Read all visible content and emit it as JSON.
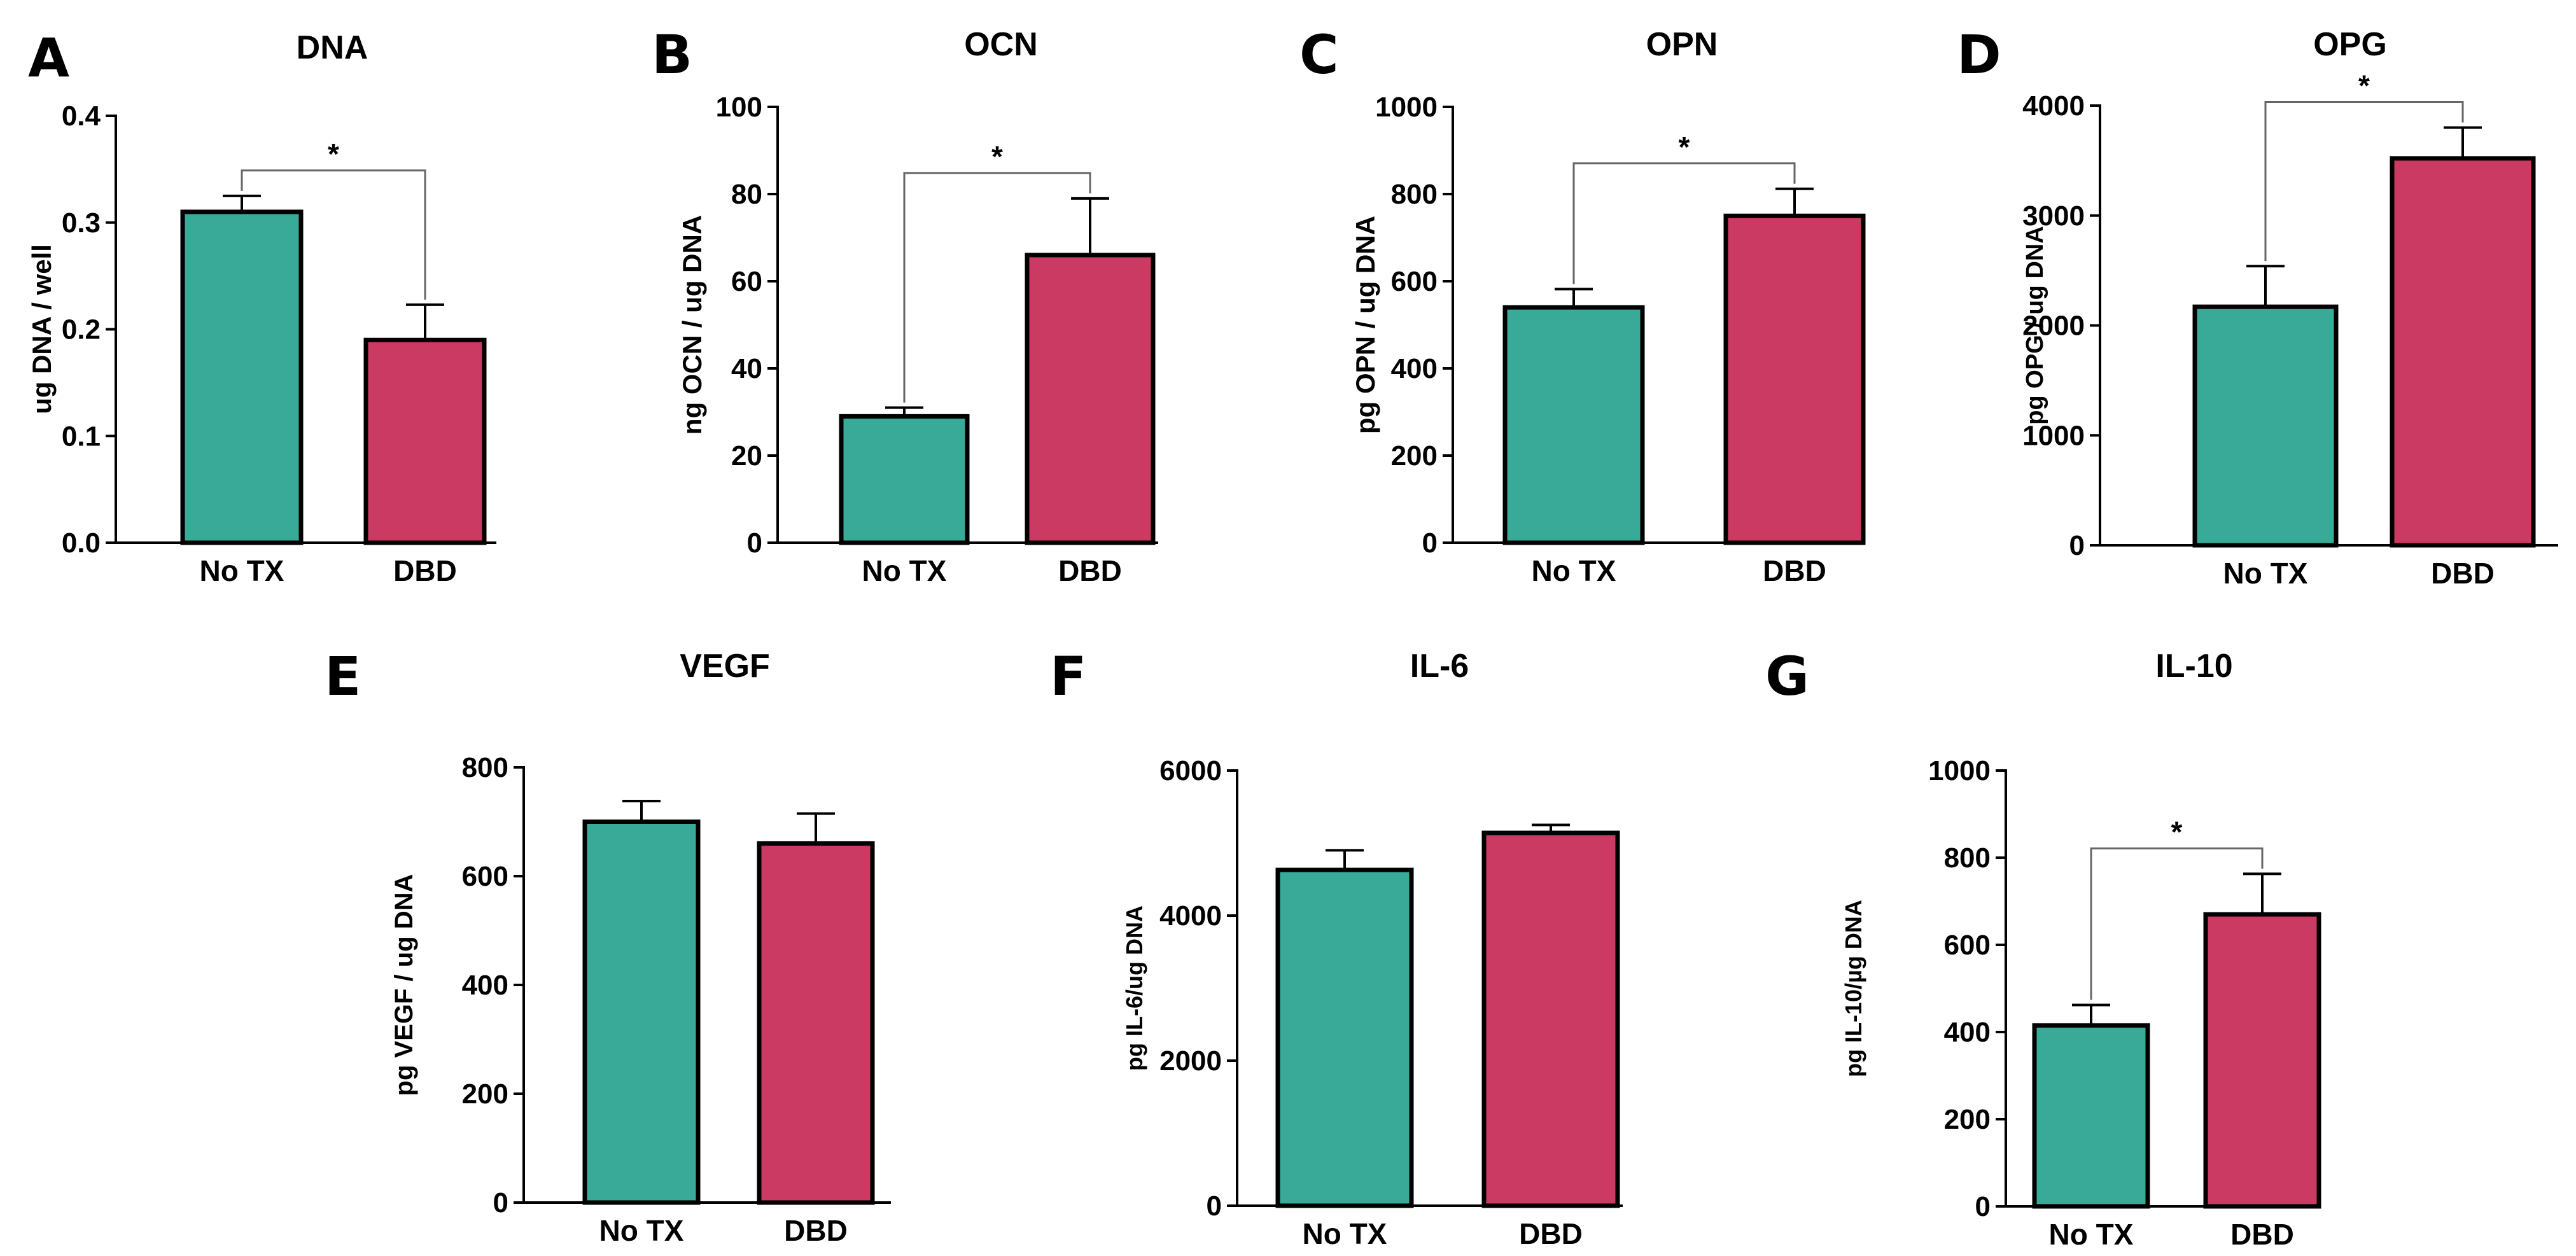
{
  "colors": {
    "no_tx": "#3aaa98",
    "dbd": "#cb3a62"
  },
  "chart_data": [
    {
      "type": "bar",
      "panel": "A",
      "title": "DNA",
      "xlabel": "",
      "ylabel": "ug DNA / well",
      "categories": [
        "No TX",
        "DBD"
      ],
      "values": [
        0.31,
        0.19
      ],
      "errors": [
        0.015,
        0.033
      ],
      "ylim": [
        0,
        0.4
      ],
      "yticks": [
        "0.0",
        "0.1",
        "0.2",
        "0.3",
        "0.4"
      ],
      "significance": "*"
    },
    {
      "type": "bar",
      "panel": "B",
      "title": "OCN",
      "xlabel": "",
      "ylabel": "ng OCN / ug DNA",
      "categories": [
        "No TX",
        "DBD"
      ],
      "values": [
        29,
        66
      ],
      "errors": [
        2,
        13
      ],
      "ylim": [
        0,
        100
      ],
      "yticks": [
        "0",
        "20",
        "40",
        "60",
        "80",
        "100"
      ],
      "significance": "*"
    },
    {
      "type": "bar",
      "panel": "C",
      "title": "OPN",
      "xlabel": "",
      "ylabel": "pg OPN / ug DNA",
      "categories": [
        "No TX",
        "DBD"
      ],
      "values": [
        540,
        750
      ],
      "errors": [
        42,
        62
      ],
      "ylim": [
        0,
        1000
      ],
      "yticks": [
        "0",
        "200",
        "400",
        "600",
        "800",
        "1000"
      ],
      "significance": "*"
    },
    {
      "type": "bar",
      "panel": "D",
      "title": "OPG",
      "xlabel": "",
      "ylabel": "pg OPG / ug DNA",
      "categories": [
        "No TX",
        "DBD"
      ],
      "values": [
        2170,
        3520
      ],
      "errors": [
        370,
        280
      ],
      "ylim": [
        0,
        4000
      ],
      "yticks": [
        "0",
        "1000",
        "2000",
        "3000",
        "4000"
      ],
      "significance": "*"
    },
    {
      "type": "bar",
      "panel": "E",
      "title": "VEGF",
      "xlabel": "",
      "ylabel": "pg VEGF / ug DNA",
      "categories": [
        "No TX",
        "DBD"
      ],
      "values": [
        700,
        660
      ],
      "errors": [
        38,
        55
      ],
      "ylim": [
        0,
        800
      ],
      "yticks": [
        "0",
        "200",
        "400",
        "600",
        "800"
      ],
      "significance": ""
    },
    {
      "type": "bar",
      "panel": "F",
      "title": "IL-6",
      "xlabel": "",
      "ylabel": "pg IL-6/ug DNA",
      "categories": [
        "No TX",
        "DBD"
      ],
      "values": [
        4630,
        5140
      ],
      "errors": [
        270,
        110
      ],
      "ylim": [
        0,
        6000
      ],
      "yticks": [
        "0",
        "2000",
        "4000",
        "6000"
      ],
      "significance": ""
    },
    {
      "type": "bar",
      "panel": "G",
      "title": "IL-10",
      "xlabel": "",
      "ylabel": "pg IL-10/µg DNA",
      "categories": [
        "No TX",
        "DBD"
      ],
      "values": [
        415,
        670
      ],
      "errors": [
        47,
        93
      ],
      "ylim": [
        0,
        1000
      ],
      "yticks": [
        "0",
        "200",
        "400",
        "600",
        "800",
        "1000"
      ],
      "significance": "*"
    }
  ]
}
